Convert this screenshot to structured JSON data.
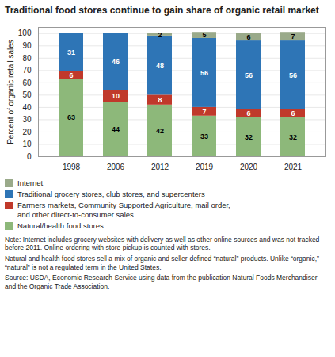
{
  "chart_data": {
    "type": "bar",
    "stacked": true,
    "title": "Traditional food stores continue to gain share of organic retail market",
    "ylabel": "Percent of organic retail sales",
    "categories": [
      "1998",
      "2006",
      "2012",
      "2019",
      "2020",
      "2021"
    ],
    "series": [
      {
        "name": "Natural/health food stores",
        "color": "#8db87a",
        "values": [
          63,
          44,
          42,
          33,
          32,
          32
        ]
      },
      {
        "name": "Farmers markets, Community Supported Agriculture, mail order,\nand other direct-to-consumer sales",
        "color": "#c0392b",
        "values": [
          6,
          10,
          8,
          7,
          6,
          6
        ]
      },
      {
        "name": "Traditional grocery stores, club stores, and supercenters",
        "color": "#2e75b6",
        "values": [
          31,
          46,
          48,
          56,
          56,
          56
        ]
      },
      {
        "name": "Internet",
        "color": "#9aaa8a",
        "values": [
          0,
          0,
          2,
          5,
          6,
          7
        ]
      }
    ],
    "ylim": [
      0,
      105
    ],
    "yticks": [
      0,
      10,
      20,
      30,
      40,
      50,
      60,
      70,
      80,
      90,
      100
    ],
    "grid": true,
    "data_labels": true,
    "legend": "bottom",
    "annotations": [
      "Note: Internet includes grocery websites with delivery as well as other online sources and was not tracked before 2011. Online ordering with store pickup is counted with stores.",
      "Natural and health food stores sell a mix of organic and seller-defined “natural” products. Unlike “organic,” “natural” is not a regulated term in the United States.",
      "Source: USDA, Economic Research Service using data from the publication Natural Foods Merchandiser and the Organic Trade Association."
    ]
  }
}
